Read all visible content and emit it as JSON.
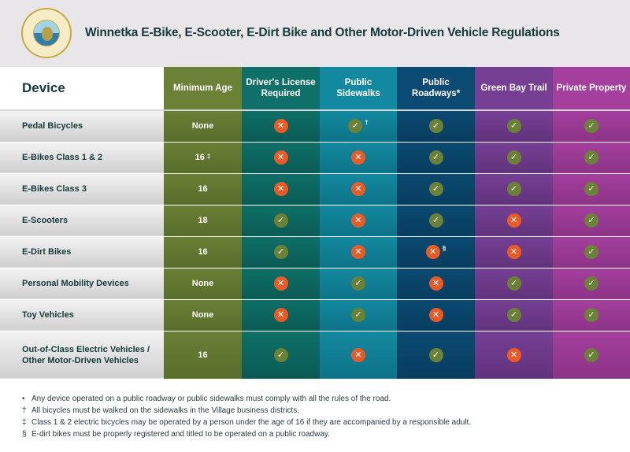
{
  "title": "Winnetka E-Bike, E-Scooter, E-Dirt Bike and Other Motor-Driven Vehicle Regulations",
  "seal_text": "VILLAGE OF WINNETKA, ILL. MARCH 10, 1869",
  "colors": {
    "age": "#6b8136",
    "license": "#0e7068",
    "sidewalks": "#1289a0",
    "roadways": "#0b4a72",
    "greenbay": "#763f94",
    "private": "#a53f9e",
    "yes": "#6b8136",
    "no": "#ea5a26"
  },
  "headers": [
    "Device",
    "Minimum Age",
    "Driver's License Required",
    "Public Sidewalks",
    "Public Roadways*",
    "Green Bay Trail",
    "Private Property"
  ],
  "rows": [
    {
      "device": "Pedal Bicycles",
      "age": "None",
      "age_note": "",
      "cells": [
        "no",
        "yes",
        "yes",
        "yes",
        "yes"
      ],
      "notes": [
        "",
        "†",
        "",
        "",
        ""
      ]
    },
    {
      "device": "E-Bikes Class 1 & 2",
      "age": "16",
      "age_note": "‡",
      "cells": [
        "no",
        "no",
        "yes",
        "yes",
        "yes"
      ],
      "notes": [
        "",
        "",
        "",
        "",
        ""
      ]
    },
    {
      "device": "E-Bikes Class 3",
      "age": "16",
      "age_note": "",
      "cells": [
        "no",
        "no",
        "yes",
        "yes",
        "yes"
      ],
      "notes": [
        "",
        "",
        "",
        "",
        ""
      ]
    },
    {
      "device": "E-Scooters",
      "age": "18",
      "age_note": "",
      "cells": [
        "yes",
        "no",
        "yes",
        "no",
        "yes"
      ],
      "notes": [
        "",
        "",
        "",
        "",
        ""
      ]
    },
    {
      "device": "E-Dirt Bikes",
      "age": "16",
      "age_note": "",
      "cells": [
        "yes",
        "no",
        "no",
        "no",
        "yes"
      ],
      "notes": [
        "",
        "",
        "§",
        "",
        ""
      ]
    },
    {
      "device": "Personal Mobility Devices",
      "age": "None",
      "age_note": "",
      "cells": [
        "no",
        "yes",
        "no",
        "yes",
        "yes"
      ],
      "notes": [
        "",
        "",
        "",
        "",
        ""
      ]
    },
    {
      "device": "Toy Vehicles",
      "age": "None",
      "age_note": "",
      "cells": [
        "no",
        "yes",
        "no",
        "yes",
        "yes"
      ],
      "notes": [
        "",
        "",
        "",
        "",
        ""
      ]
    },
    {
      "device": "Out-of-Class Electric Vehicles / Other Motor-Driven Vehicles",
      "age": "16",
      "age_note": "",
      "cells": [
        "yes",
        "no",
        "yes",
        "no",
        "yes"
      ],
      "notes": [
        "",
        "",
        "",
        "",
        ""
      ]
    }
  ],
  "footnotes": [
    {
      "mark": "•",
      "text": "Any device operated on a public roadway or public sidewalks must comply with all the rules of the road."
    },
    {
      "mark": "†",
      "text": "All bicycles must be walked on the sidewalks in the Village business districts."
    },
    {
      "mark": "‡",
      "text": "Class 1 & 2 electric bicycles may be operated by a person under the age of 16 if they are accompanied by a responsible adult."
    },
    {
      "mark": "§",
      "text": "E-dirt bikes must be properly registered and titled to be operated on a public roadway."
    }
  ]
}
